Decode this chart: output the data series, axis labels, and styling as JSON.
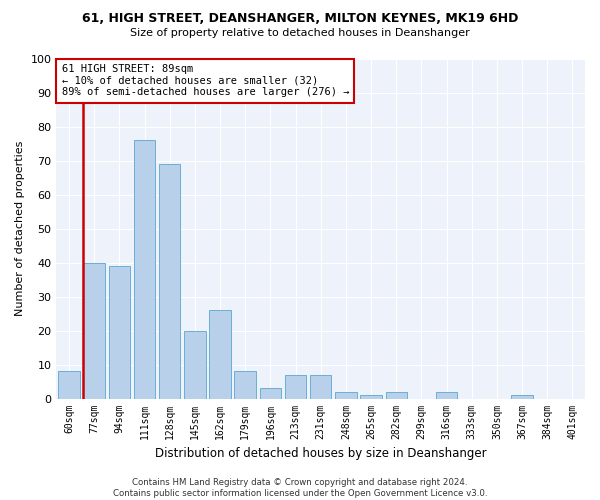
{
  "title1": "61, HIGH STREET, DEANSHANGER, MILTON KEYNES, MK19 6HD",
  "title2": "Size of property relative to detached houses in Deanshanger",
  "xlabel": "Distribution of detached houses by size in Deanshanger",
  "ylabel": "Number of detached properties",
  "categories": [
    "60sqm",
    "77sqm",
    "94sqm",
    "111sqm",
    "128sqm",
    "145sqm",
    "162sqm",
    "179sqm",
    "196sqm",
    "213sqm",
    "231sqm",
    "248sqm",
    "265sqm",
    "282sqm",
    "299sqm",
    "316sqm",
    "333sqm",
    "350sqm",
    "367sqm",
    "384sqm",
    "401sqm"
  ],
  "values": [
    8,
    40,
    39,
    76,
    69,
    20,
    26,
    8,
    3,
    7,
    7,
    2,
    1,
    2,
    0,
    2,
    0,
    0,
    1,
    0,
    0
  ],
  "bar_color": "#b8d0ea",
  "bar_edge_color": "#6baed6",
  "highlight_color": "#cc0000",
  "annotation_text": "61 HIGH STREET: 89sqm\n← 10% of detached houses are smaller (32)\n89% of semi-detached houses are larger (276) →",
  "annotation_box_color": "#cc0000",
  "ylim": [
    0,
    100
  ],
  "yticks": [
    0,
    10,
    20,
    30,
    40,
    50,
    60,
    70,
    80,
    90,
    100
  ],
  "background_color": "#eef2fa",
  "grid_color": "#ffffff",
  "footnote": "Contains HM Land Registry data © Crown copyright and database right 2024.\nContains public sector information licensed under the Open Government Licence v3.0."
}
